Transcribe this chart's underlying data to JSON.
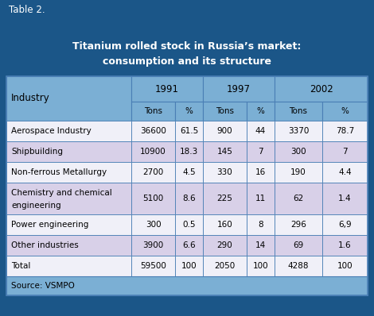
{
  "table_label": "Table 2.",
  "title_line1": "Titanium rolled stock in Russia’s market:",
  "title_line2": "consumption and its structure",
  "source": "Source: VSMPO",
  "col_years": [
    "1991",
    "1997",
    "2002"
  ],
  "col_sub": [
    "Tons",
    "%",
    "Tons",
    "%",
    "Tons",
    "%"
  ],
  "row_header": "Industry",
  "rows": [
    [
      "Aerospace Industry",
      "36600",
      "61.5",
      "900",
      "44",
      "3370",
      "78.7"
    ],
    [
      "Shipbuilding",
      "10900",
      "18.3",
      "145",
      "7",
      "300",
      "7"
    ],
    [
      "Non-ferrous Metallurgy",
      "2700",
      "4.5",
      "330",
      "16",
      "190",
      "4.4"
    ],
    [
      "Chemistry and chemical\nengineering",
      "5100",
      "8.6",
      "225",
      "11",
      "62",
      "1.4"
    ],
    [
      "Power engineering",
      "300",
      "0.5",
      "160",
      "8",
      "296",
      "6,9"
    ],
    [
      "Other industries",
      "3900",
      "6.6",
      "290",
      "14",
      "69",
      "1.6"
    ],
    [
      "Total",
      "59500",
      "100",
      "2050",
      "100",
      "4288",
      "100"
    ]
  ],
  "header_bg": "#1b5688",
  "header_fg": "#ffffff",
  "subheader_bg": "#7bafd4",
  "subheader_fg": "#000000",
  "row_bg1": "#ffffff",
  "row_bg2": "#dce4f0",
  "row_bg3": "#ccd8ec",
  "total_bg": "#dce4f0",
  "border_color": "#4a7fb5",
  "source_bg": "#7bafd4",
  "source_fg": "#000000",
  "figsize": [
    4.7,
    3.98
  ],
  "dpi": 100
}
